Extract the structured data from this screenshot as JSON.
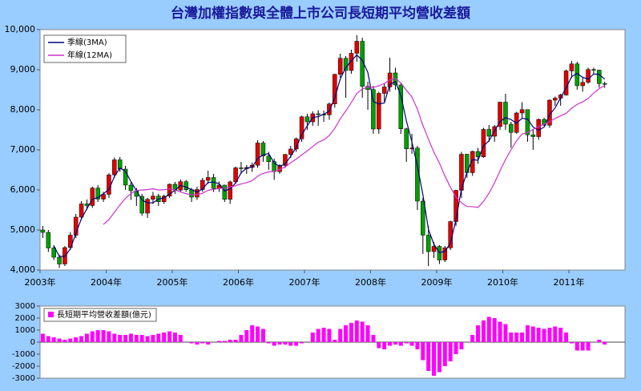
{
  "chart_data": [
    {
      "type": "candlestick",
      "title": "台灣加權指數與全體上市公司長短期平均營收差額",
      "x_labels": [
        "2003年",
        "2004年",
        "2005年",
        "2006年",
        "2007年",
        "2008年",
        "2009年",
        "2010年",
        "2011年"
      ],
      "ylim": [
        4000,
        10000
      ],
      "yticks": [
        {
          "value": 4000,
          "label": "4,000"
        },
        {
          "value": 5000,
          "label": "5,000"
        },
        {
          "value": 6000,
          "label": "6,000"
        },
        {
          "value": 7000,
          "label": "7,000"
        },
        {
          "value": 8000,
          "label": "8,000"
        },
        {
          "value": 9000,
          "label": "9,000"
        },
        {
          "value": 10000,
          "label": "10,000"
        }
      ],
      "up_color": "#e00000",
      "down_color": "#00a000",
      "open": [
        5000,
        4940,
        4550,
        4320,
        4150,
        4560,
        4870,
        5320,
        5650,
        5610,
        6045,
        5770,
        5890,
        6375,
        6750,
        6520,
        6120,
        5980,
        5840,
        5420,
        5765,
        5845,
        5705,
        5845,
        6140,
        5995,
        6205,
        6005,
        5820,
        6010,
        6240,
        6310,
        6035,
        6120,
        5765,
        6200,
        6550,
        6530,
        6560,
        6615,
        7170,
        6845,
        6705,
        6455,
        6610,
        6885,
        7020,
        7275,
        7825,
        7700,
        7900,
        7885,
        7875,
        8145,
        8885,
        9285,
        8980,
        9410,
        9710,
        8585,
        8505,
        7520,
        8410,
        8570,
        8920,
        8620,
        7525,
        7025,
        7045,
        5720,
        4870,
        4460,
        4590,
        4250,
        4555,
        5210,
        5990,
        6890,
        6430,
        6960,
        6825,
        7510,
        7340,
        7580,
        8190,
        7640,
        7435,
        7920,
        8005,
        7375,
        7330,
        7760,
        7615,
        8240,
        8290,
        8370,
        8970,
        9145,
        8600,
        8685,
        9005,
        8990,
        8655
      ],
      "high": [
        5100,
        5000,
        4620,
        4380,
        4600,
        4950,
        5400,
        5720,
        5760,
        6080,
        6120,
        5950,
        6420,
        6810,
        6820,
        6600,
        6200,
        6050,
        5900,
        5800,
        5950,
        5900,
        5880,
        6160,
        6200,
        6260,
        6250,
        6050,
        6080,
        6300,
        6480,
        6400,
        6210,
        6130,
        6230,
        6580,
        6700,
        6620,
        6680,
        7240,
        7220,
        6950,
        6780,
        6640,
        6900,
        7100,
        7310,
        7850,
        7900,
        7960,
        7990,
        7980,
        8180,
        8900,
        9400,
        9340,
        9500,
        9860,
        9800,
        8700,
        8600,
        8450,
        8650,
        9300,
        9050,
        8680,
        7550,
        7400,
        7100,
        5800,
        5100,
        4700,
        4620,
        4600,
        5230,
        6000,
        6950,
        6900,
        6980,
        7050,
        7550,
        7620,
        7620,
        8200,
        8400,
        7700,
        7950,
        8190,
        8010,
        7500,
        7780,
        7800,
        8260,
        8330,
        8400,
        9000,
        9220,
        9200,
        8800,
        9050,
        9050,
        9000,
        8700
      ],
      "low": [
        4800,
        4450,
        4250,
        4050,
        4100,
        4500,
        4800,
        5250,
        5500,
        5550,
        5700,
        5700,
        5800,
        6300,
        6450,
        6000,
        5750,
        5600,
        5350,
        5300,
        5650,
        5600,
        5650,
        5800,
        5900,
        5950,
        5950,
        5700,
        5750,
        5950,
        6150,
        5950,
        5950,
        5700,
        5650,
        6150,
        6400,
        6400,
        6450,
        6550,
        6700,
        6500,
        6250,
        6400,
        6550,
        6800,
        6950,
        7200,
        7500,
        7600,
        7600,
        7700,
        7750,
        8050,
        8800,
        8300,
        8900,
        9200,
        8300,
        8000,
        7400,
        7400,
        8200,
        8450,
        8500,
        7400,
        6700,
        6900,
        5500,
        4400,
        4100,
        4300,
        4150,
        4200,
        4500,
        5100,
        5800,
        6300,
        6350,
        6650,
        6800,
        7200,
        7200,
        7500,
        7500,
        7050,
        7400,
        7800,
        7200,
        7000,
        7250,
        7600,
        7550,
        8100,
        8100,
        8350,
        8800,
        8500,
        8450,
        8650,
        8900,
        8550,
        8550
      ],
      "close": [
        4940,
        4550,
        4320,
        4150,
        4560,
        4870,
        5320,
        5650,
        5610,
        6045,
        5770,
        5890,
        6375,
        6750,
        6520,
        6120,
        5980,
        5840,
        5420,
        5765,
        5845,
        5705,
        5845,
        6140,
        5995,
        6205,
        6005,
        5820,
        6010,
        6240,
        6310,
        6035,
        6120,
        5765,
        6200,
        6550,
        6530,
        6560,
        6615,
        7170,
        6845,
        6705,
        6455,
        6610,
        6885,
        7020,
        7275,
        7825,
        7700,
        7900,
        7885,
        7875,
        8145,
        8885,
        9285,
        8980,
        9410,
        9710,
        8585,
        8505,
        7520,
        8410,
        8570,
        8920,
        8620,
        7525,
        7025,
        7045,
        5720,
        4870,
        4460,
        4590,
        4250,
        4555,
        5210,
        5990,
        6890,
        6430,
        6960,
        6825,
        7510,
        7340,
        7580,
        8190,
        7640,
        7435,
        7920,
        8005,
        7375,
        7330,
        7760,
        7615,
        8240,
        8290,
        8370,
        8970,
        9145,
        8600,
        8685,
        9005,
        8990,
        8655,
        8645
      ],
      "legend": "upper left",
      "series": [
        {
          "name": "季線(3MA)",
          "color": "#000080",
          "values": [
            null,
            null,
            4603,
            4340,
            4343,
            4527,
            4917,
            5280,
            5527,
            5768,
            5808,
            5902,
            6012,
            6338,
            6548,
            6463,
            6207,
            5980,
            5747,
            5675,
            5677,
            5772,
            5798,
            5897,
            5993,
            6113,
            6068,
            6010,
            5945,
            6023,
            6187,
            6195,
            6155,
            5973,
            6028,
            6172,
            6427,
            6547,
            6568,
            6782,
            6877,
            6907,
            6668,
            6590,
            6650,
            6838,
            7060,
            7373,
            7600,
            7808,
            7828,
            7887,
            7968,
            8302,
            8772,
            9050,
            9225,
            9367,
            9235,
            8933,
            8203,
            8145,
            8167,
            8633,
            8703,
            8355,
            7723,
            7198,
            6597,
            5878,
            5017,
            4640,
            4433,
            4465,
            4672,
            5252,
            6030,
            6437,
            6760,
            6738,
            7098,
            7225,
            7477,
            7703,
            7803,
            7755,
            7665,
            7787,
            7767,
            7570,
            7488,
            7568,
            7872,
            8048,
            8300,
            8543,
            8828,
            8905,
            8810,
            8763,
            8893,
            8883,
            8763
          ]
        },
        {
          "name": "年線(12MA)",
          "color": "#cc33cc",
          "values": [
            null,
            null,
            null,
            null,
            null,
            null,
            null,
            null,
            null,
            null,
            null,
            5140,
            5259,
            5443,
            5626,
            5790,
            5908,
            5989,
            5998,
            6007,
            6027,
            5998,
            6005,
            6025,
            5994,
            5948,
            5905,
            5880,
            5883,
            5916,
            5990,
            6013,
            6036,
            6041,
            6070,
            6105,
            6149,
            6179,
            6230,
            6342,
            6412,
            6450,
            6463,
            6510,
            6574,
            6679,
            6768,
            6875,
            6972,
            7084,
            7190,
            7248,
            7357,
            7538,
            7774,
            7972,
            8182,
            8406,
            8515,
            8572,
            8557,
            8600,
            8657,
            8744,
            8783,
            8670,
            8482,
            8320,
            8013,
            7610,
            7266,
            6940,
            6667,
            6346,
            6066,
            5822,
            5678,
            5586,
            5581,
            5563,
            5712,
            5918,
            6178,
            6478,
            6760,
            7000,
            7226,
            7394,
            7434,
            7509,
            7576,
            7642,
            7703,
            7782,
            7848,
            7913,
            8038,
            8135,
            8199,
            8282,
            8417,
            8527,
            8601
          ]
        }
      ]
    },
    {
      "type": "bar",
      "ylim": [
        -3000,
        3000
      ],
      "yticks": [
        -3000,
        -2000,
        -1000,
        0,
        1000,
        2000,
        3000
      ],
      "legend": "upper left",
      "series": [
        {
          "name": "長短期平均營收差額(億元)",
          "color": "#ff00ff",
          "values": [
            700,
            500,
            400,
            300,
            200,
            300,
            400,
            500,
            700,
            900,
            1000,
            1000,
            900,
            700,
            600,
            600,
            700,
            600,
            600,
            500,
            600,
            700,
            800,
            900,
            800,
            600,
            0,
            -100,
            -200,
            -100,
            -200,
            0,
            100,
            100,
            200,
            200,
            600,
            1000,
            1400,
            1300,
            1100,
            -100,
            -300,
            -200,
            -200,
            -300,
            -300,
            -100,
            0,
            800,
            1100,
            1200,
            1100,
            200,
            1100,
            1400,
            1600,
            1800,
            1700,
            1400,
            600,
            -500,
            -600,
            -300,
            -200,
            -300,
            -100,
            -300,
            -600,
            -1500,
            -2400,
            -2800,
            -2500,
            -2000,
            -1600,
            -1000,
            -600,
            0,
            600,
            1400,
            1800,
            2100,
            2000,
            1700,
            1500,
            800,
            800,
            800,
            1400,
            1300,
            1200,
            1100,
            1200,
            1300,
            1200,
            800,
            -100,
            -700,
            -700,
            -700,
            0,
            200,
            -200
          ]
        }
      ]
    }
  ]
}
